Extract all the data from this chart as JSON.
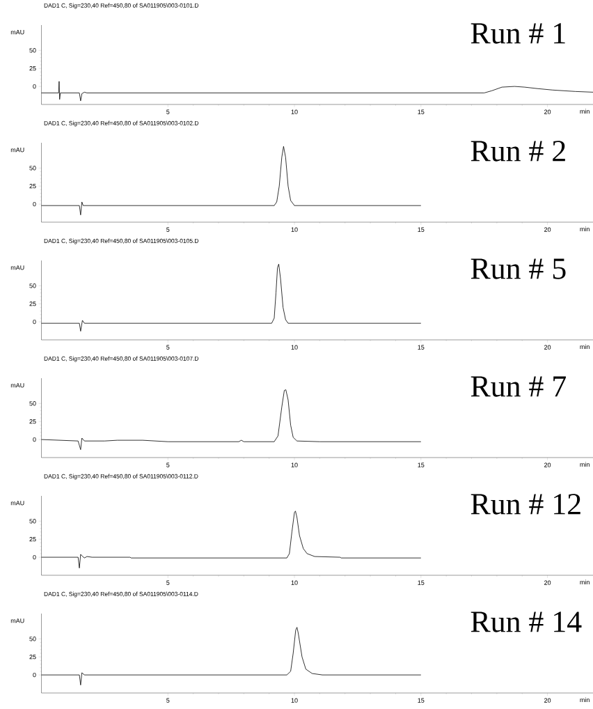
{
  "chart_data": [
    {
      "type": "line",
      "title": "DAD1 C, Sig=230,40 Ref=450,80 of SA011905\\003-0101.D",
      "ylabel": "mAU",
      "xlabel": "min",
      "annotations": [
        "Run # 1"
      ],
      "color": "#000000",
      "xlim": [
        0,
        21.8
      ],
      "ylim": [
        -25,
        85
      ],
      "xticks": [
        5,
        10,
        15,
        20
      ],
      "yticks": [
        0,
        25,
        50
      ],
      "x": [
        0,
        0.6,
        0.68,
        0.7,
        0.72,
        0.75,
        1.5,
        1.55,
        1.6,
        1.7,
        1.8,
        17.5,
        17.8,
        18.2,
        18.7,
        19.1,
        19.6,
        20.2,
        21.1,
        21.8
      ],
      "values": [
        -9,
        -9,
        -9,
        7,
        -18,
        -9,
        -9,
        -20,
        -10,
        -8,
        -9,
        -9,
        -6,
        -1,
        0,
        -1,
        -3,
        -5,
        -7,
        -8
      ]
    },
    {
      "type": "line",
      "title": "DAD1 C, Sig=230,40 Ref=450,80 of SA011905\\003-0102.D",
      "ylabel": "mAU",
      "xlabel": "min",
      "annotations": [
        "Run # 2"
      ],
      "color": "#000000",
      "xlim": [
        0,
        21.8
      ],
      "ylim": [
        -25,
        85
      ],
      "xticks": [
        5,
        10,
        15,
        20
      ],
      "yticks": [
        0,
        25,
        50
      ],
      "x": [
        0,
        1.5,
        1.55,
        1.6,
        1.65,
        9.2,
        9.3,
        9.4,
        9.5,
        9.57,
        9.65,
        9.75,
        9.85,
        10.0,
        15
      ],
      "values": [
        -2,
        -2,
        -15,
        3,
        -2,
        -2,
        3,
        25,
        65,
        80,
        65,
        25,
        5,
        -2,
        -2
      ]
    },
    {
      "type": "line",
      "title": "DAD1 C, Sig=230,40 Ref=450,80 of SA011905\\003-0105.D",
      "ylabel": "mAU",
      "xlabel": "min",
      "annotations": [
        "Run # 5"
      ],
      "color": "#000000",
      "xlim": [
        0,
        21.8
      ],
      "ylim": [
        -25,
        85
      ],
      "xticks": [
        5,
        10,
        15,
        20
      ],
      "yticks": [
        0,
        25,
        50
      ],
      "x": [
        0,
        1.5,
        1.55,
        1.62,
        1.7,
        9.1,
        9.2,
        9.27,
        9.33,
        9.38,
        9.45,
        9.55,
        9.65,
        9.75,
        15
      ],
      "values": [
        -2,
        -2,
        -13,
        2,
        -2,
        -2,
        5,
        40,
        75,
        80,
        60,
        20,
        3,
        -2,
        -2
      ]
    },
    {
      "type": "line",
      "title": "DAD1 C, Sig=230,40 Ref=450,80 of SA011905\\003-0107.D",
      "ylabel": "mAU",
      "xlabel": "min",
      "annotations": [
        "Run # 7"
      ],
      "color": "#000000",
      "xlim": [
        0,
        21.8
      ],
      "ylim": [
        -25,
        85
      ],
      "xticks": [
        5,
        10,
        15,
        20
      ],
      "yticks": [
        0,
        25,
        50
      ],
      "x": [
        0,
        1.45,
        1.55,
        1.6,
        1.7,
        2.5,
        3,
        4,
        5,
        7.8,
        7.9,
        8.0,
        9.2,
        9.35,
        9.5,
        9.6,
        9.66,
        9.75,
        9.85,
        9.95,
        10.1,
        11,
        15
      ],
      "values": [
        0,
        -2,
        -14,
        2,
        -2,
        -2,
        -1,
        -1,
        -3,
        -3,
        -1,
        -3,
        -3,
        5,
        45,
        68,
        69,
        55,
        20,
        3,
        -2,
        -3,
        -3
      ]
    },
    {
      "type": "line",
      "title": "DAD1 C, Sig=230,40 Ref=450,80 of SA011905\\003-0112.D",
      "ylabel": "mAU",
      "xlabel": "min",
      "annotations": [
        "Run # 12"
      ],
      "color": "#000000",
      "xlim": [
        0,
        21.8
      ],
      "ylim": [
        -25,
        85
      ],
      "xticks": [
        5,
        10,
        15,
        20
      ],
      "yticks": [
        0,
        25,
        50
      ],
      "x": [
        0,
        1.45,
        1.5,
        1.55,
        1.6,
        1.7,
        1.8,
        2,
        3.5,
        3.55,
        9.7,
        9.8,
        9.9,
        10.0,
        10.04,
        10.1,
        10.2,
        10.35,
        10.5,
        10.8,
        11.8,
        11.85,
        15
      ],
      "values": [
        0,
        0,
        -15,
        4,
        2,
        -1,
        1,
        0,
        0,
        -1,
        -1,
        5,
        35,
        62,
        64,
        55,
        30,
        12,
        5,
        1,
        0,
        -1,
        -1
      ]
    },
    {
      "type": "line",
      "title": "DAD1 C, Sig=230,40 Ref=450,80 of SA011905\\003-0114.D",
      "ylabel": "mAU",
      "xlabel": "min",
      "annotations": [
        "Run # 14"
      ],
      "color": "#000000",
      "xlim": [
        0,
        21.8
      ],
      "ylim": [
        -25,
        85
      ],
      "xticks": [
        5,
        10,
        15,
        20
      ],
      "yticks": [
        0,
        25,
        50
      ],
      "x": [
        0,
        1.5,
        1.55,
        1.6,
        1.7,
        9.7,
        9.85,
        9.95,
        10.05,
        10.1,
        10.15,
        10.3,
        10.45,
        10.7,
        11.1,
        15
      ],
      "values": [
        0,
        0,
        -14,
        3,
        0,
        0,
        5,
        30,
        62,
        66,
        58,
        25,
        8,
        2,
        0,
        0
      ]
    }
  ]
}
